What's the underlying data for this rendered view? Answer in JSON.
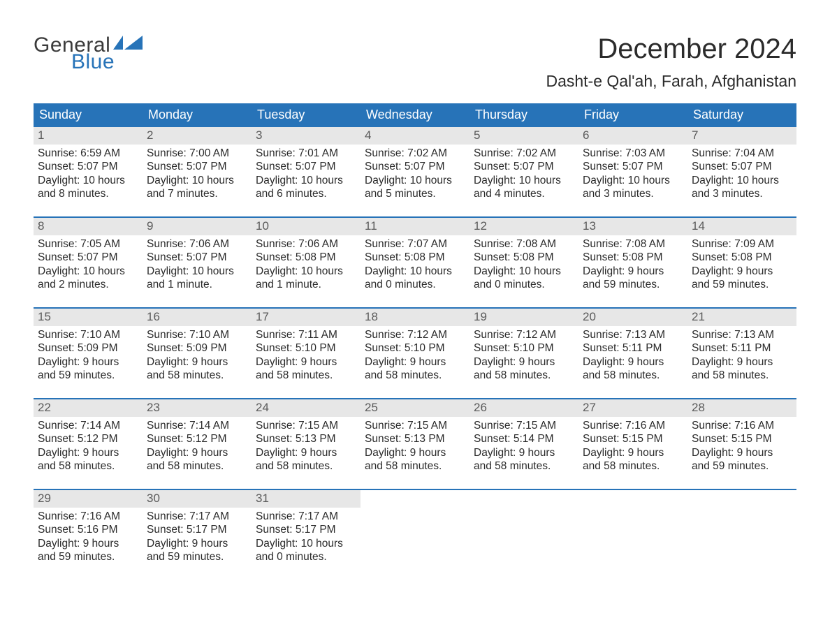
{
  "logo": {
    "general": "General",
    "blue": "Blue"
  },
  "title": "December 2024",
  "location": "Dasht-e Qal'ah, Farah, Afghanistan",
  "colors": {
    "header_bg": "#2773b8",
    "header_fg": "#ffffff",
    "daynum_bg": "#e7e7e7",
    "daynum_fg": "#5a5a5a",
    "week_border": "#2773b8",
    "body_text": "#2b2b2b",
    "logo_blue": "#2773b8"
  },
  "days_of_week": [
    "Sunday",
    "Monday",
    "Tuesday",
    "Wednesday",
    "Thursday",
    "Friday",
    "Saturday"
  ],
  "weeks": [
    [
      {
        "n": "1",
        "sr": "Sunrise: 6:59 AM",
        "ss": "Sunset: 5:07 PM",
        "d1": "Daylight: 10 hours",
        "d2": "and 8 minutes."
      },
      {
        "n": "2",
        "sr": "Sunrise: 7:00 AM",
        "ss": "Sunset: 5:07 PM",
        "d1": "Daylight: 10 hours",
        "d2": "and 7 minutes."
      },
      {
        "n": "3",
        "sr": "Sunrise: 7:01 AM",
        "ss": "Sunset: 5:07 PM",
        "d1": "Daylight: 10 hours",
        "d2": "and 6 minutes."
      },
      {
        "n": "4",
        "sr": "Sunrise: 7:02 AM",
        "ss": "Sunset: 5:07 PM",
        "d1": "Daylight: 10 hours",
        "d2": "and 5 minutes."
      },
      {
        "n": "5",
        "sr": "Sunrise: 7:02 AM",
        "ss": "Sunset: 5:07 PM",
        "d1": "Daylight: 10 hours",
        "d2": "and 4 minutes."
      },
      {
        "n": "6",
        "sr": "Sunrise: 7:03 AM",
        "ss": "Sunset: 5:07 PM",
        "d1": "Daylight: 10 hours",
        "d2": "and 3 minutes."
      },
      {
        "n": "7",
        "sr": "Sunrise: 7:04 AM",
        "ss": "Sunset: 5:07 PM",
        "d1": "Daylight: 10 hours",
        "d2": "and 3 minutes."
      }
    ],
    [
      {
        "n": "8",
        "sr": "Sunrise: 7:05 AM",
        "ss": "Sunset: 5:07 PM",
        "d1": "Daylight: 10 hours",
        "d2": "and 2 minutes."
      },
      {
        "n": "9",
        "sr": "Sunrise: 7:06 AM",
        "ss": "Sunset: 5:07 PM",
        "d1": "Daylight: 10 hours",
        "d2": "and 1 minute."
      },
      {
        "n": "10",
        "sr": "Sunrise: 7:06 AM",
        "ss": "Sunset: 5:08 PM",
        "d1": "Daylight: 10 hours",
        "d2": "and 1 minute."
      },
      {
        "n": "11",
        "sr": "Sunrise: 7:07 AM",
        "ss": "Sunset: 5:08 PM",
        "d1": "Daylight: 10 hours",
        "d2": "and 0 minutes."
      },
      {
        "n": "12",
        "sr": "Sunrise: 7:08 AM",
        "ss": "Sunset: 5:08 PM",
        "d1": "Daylight: 10 hours",
        "d2": "and 0 minutes."
      },
      {
        "n": "13",
        "sr": "Sunrise: 7:08 AM",
        "ss": "Sunset: 5:08 PM",
        "d1": "Daylight: 9 hours",
        "d2": "and 59 minutes."
      },
      {
        "n": "14",
        "sr": "Sunrise: 7:09 AM",
        "ss": "Sunset: 5:08 PM",
        "d1": "Daylight: 9 hours",
        "d2": "and 59 minutes."
      }
    ],
    [
      {
        "n": "15",
        "sr": "Sunrise: 7:10 AM",
        "ss": "Sunset: 5:09 PM",
        "d1": "Daylight: 9 hours",
        "d2": "and 59 minutes."
      },
      {
        "n": "16",
        "sr": "Sunrise: 7:10 AM",
        "ss": "Sunset: 5:09 PM",
        "d1": "Daylight: 9 hours",
        "d2": "and 58 minutes."
      },
      {
        "n": "17",
        "sr": "Sunrise: 7:11 AM",
        "ss": "Sunset: 5:10 PM",
        "d1": "Daylight: 9 hours",
        "d2": "and 58 minutes."
      },
      {
        "n": "18",
        "sr": "Sunrise: 7:12 AM",
        "ss": "Sunset: 5:10 PM",
        "d1": "Daylight: 9 hours",
        "d2": "and 58 minutes."
      },
      {
        "n": "19",
        "sr": "Sunrise: 7:12 AM",
        "ss": "Sunset: 5:10 PM",
        "d1": "Daylight: 9 hours",
        "d2": "and 58 minutes."
      },
      {
        "n": "20",
        "sr": "Sunrise: 7:13 AM",
        "ss": "Sunset: 5:11 PM",
        "d1": "Daylight: 9 hours",
        "d2": "and 58 minutes."
      },
      {
        "n": "21",
        "sr": "Sunrise: 7:13 AM",
        "ss": "Sunset: 5:11 PM",
        "d1": "Daylight: 9 hours",
        "d2": "and 58 minutes."
      }
    ],
    [
      {
        "n": "22",
        "sr": "Sunrise: 7:14 AM",
        "ss": "Sunset: 5:12 PM",
        "d1": "Daylight: 9 hours",
        "d2": "and 58 minutes."
      },
      {
        "n": "23",
        "sr": "Sunrise: 7:14 AM",
        "ss": "Sunset: 5:12 PM",
        "d1": "Daylight: 9 hours",
        "d2": "and 58 minutes."
      },
      {
        "n": "24",
        "sr": "Sunrise: 7:15 AM",
        "ss": "Sunset: 5:13 PM",
        "d1": "Daylight: 9 hours",
        "d2": "and 58 minutes."
      },
      {
        "n": "25",
        "sr": "Sunrise: 7:15 AM",
        "ss": "Sunset: 5:13 PM",
        "d1": "Daylight: 9 hours",
        "d2": "and 58 minutes."
      },
      {
        "n": "26",
        "sr": "Sunrise: 7:15 AM",
        "ss": "Sunset: 5:14 PM",
        "d1": "Daylight: 9 hours",
        "d2": "and 58 minutes."
      },
      {
        "n": "27",
        "sr": "Sunrise: 7:16 AM",
        "ss": "Sunset: 5:15 PM",
        "d1": "Daylight: 9 hours",
        "d2": "and 58 minutes."
      },
      {
        "n": "28",
        "sr": "Sunrise: 7:16 AM",
        "ss": "Sunset: 5:15 PM",
        "d1": "Daylight: 9 hours",
        "d2": "and 59 minutes."
      }
    ],
    [
      {
        "n": "29",
        "sr": "Sunrise: 7:16 AM",
        "ss": "Sunset: 5:16 PM",
        "d1": "Daylight: 9 hours",
        "d2": "and 59 minutes."
      },
      {
        "n": "30",
        "sr": "Sunrise: 7:17 AM",
        "ss": "Sunset: 5:17 PM",
        "d1": "Daylight: 9 hours",
        "d2": "and 59 minutes."
      },
      {
        "n": "31",
        "sr": "Sunrise: 7:17 AM",
        "ss": "Sunset: 5:17 PM",
        "d1": "Daylight: 10 hours",
        "d2": "and 0 minutes."
      },
      null,
      null,
      null,
      null
    ]
  ]
}
